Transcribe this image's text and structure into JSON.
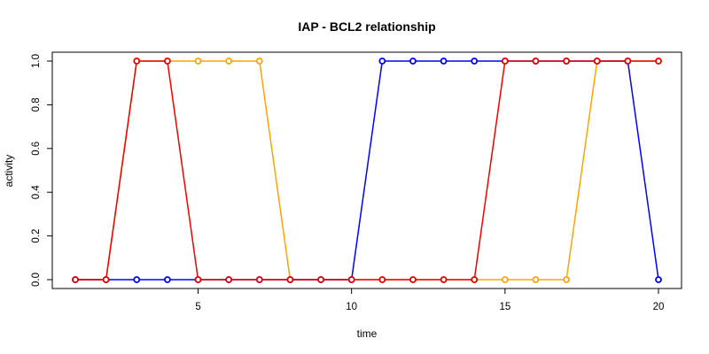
{
  "chart_data": {
    "type": "line",
    "title": "IAP - BCL2 relationship",
    "xlabel": "time",
    "ylabel": "activity",
    "x": [
      1,
      2,
      3,
      4,
      5,
      6,
      7,
      8,
      9,
      10,
      11,
      12,
      13,
      14,
      15,
      16,
      17,
      18,
      19,
      20
    ],
    "xlim": [
      1,
      20
    ],
    "ylim": [
      0,
      1
    ],
    "xticks": [
      5,
      10,
      15,
      20
    ],
    "xtick_labels": [
      "5",
      "10",
      "15",
      "20"
    ],
    "yticks": [
      0,
      0.2,
      0.4,
      0.6,
      0.8,
      1
    ],
    "ytick_labels": [
      "0.0",
      "0.2",
      "0.4",
      "0.6",
      "0.8",
      "1.0"
    ],
    "grid": false,
    "markers": "open-circle",
    "series": [
      {
        "color": "#ffa500",
        "values": [
          0,
          0,
          1,
          1,
          1,
          1,
          1,
          0,
          0,
          0,
          0,
          0,
          0,
          0,
          0,
          0,
          0,
          1,
          1,
          1
        ]
      },
      {
        "color": "#0000ff",
        "values": [
          0,
          0,
          0,
          0,
          0,
          0,
          0,
          0,
          0,
          0,
          1,
          1,
          1,
          1,
          1,
          1,
          1,
          1,
          1,
          0
        ]
      },
      {
        "color": "#ee0000",
        "values": [
          0,
          0,
          1,
          1,
          0,
          0,
          0,
          0,
          0,
          0,
          0,
          0,
          0,
          0,
          1,
          1,
          1,
          1,
          1,
          1
        ]
      }
    ]
  }
}
